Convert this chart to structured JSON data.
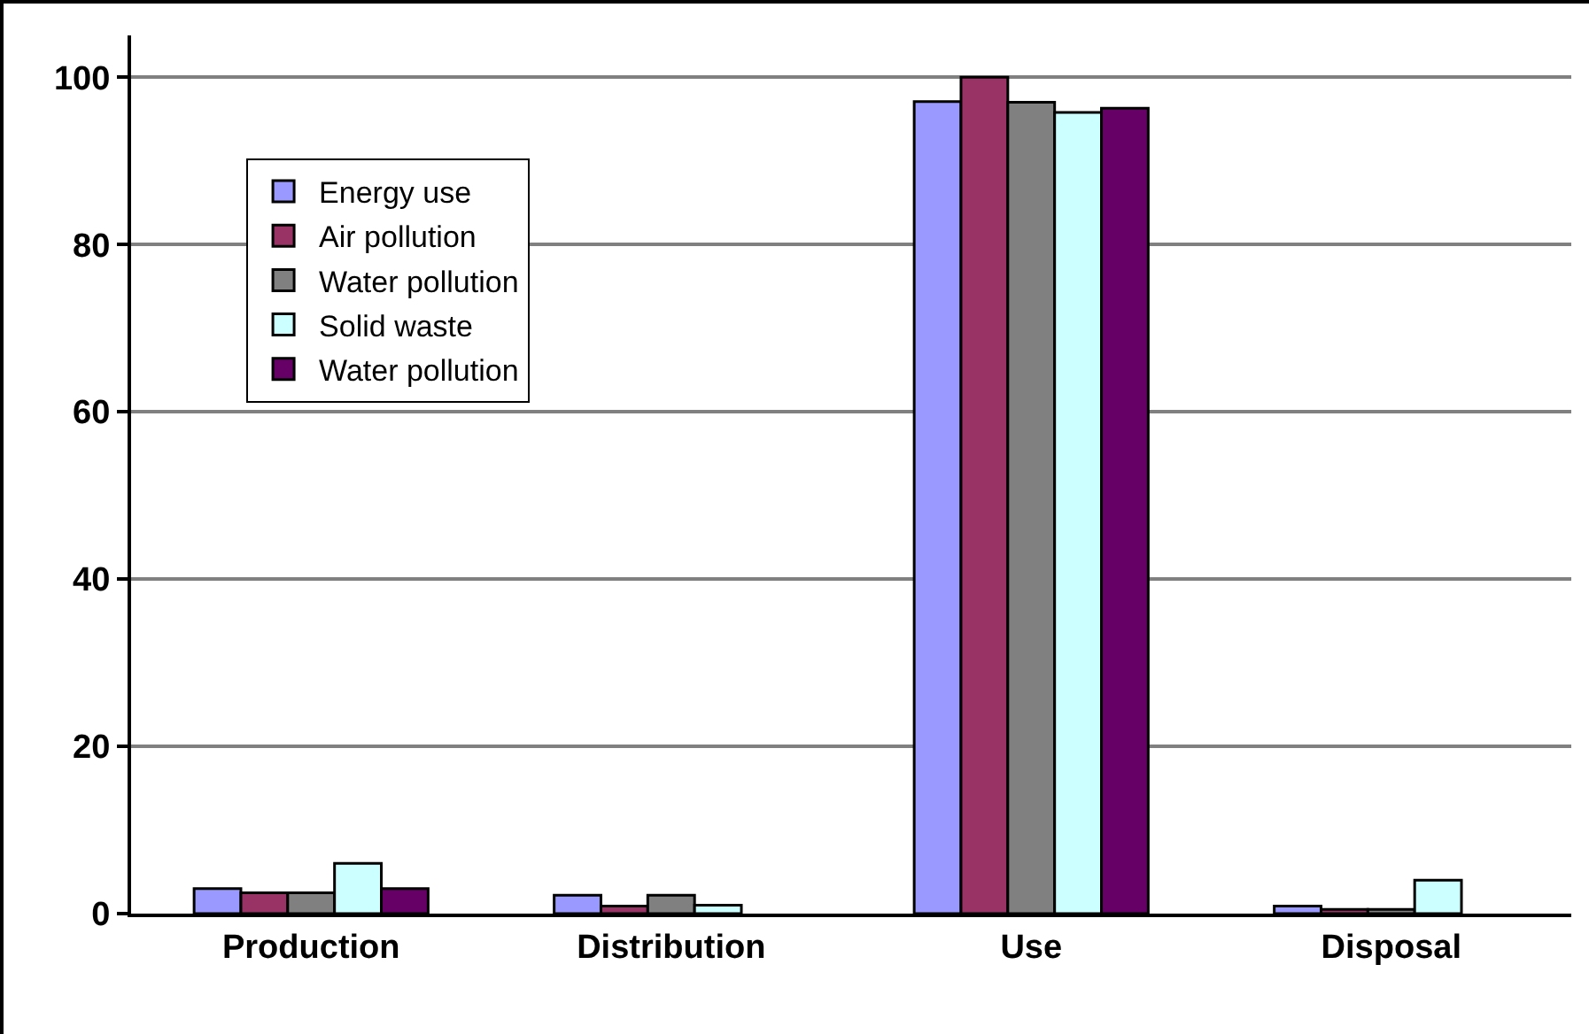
{
  "chart_data": {
    "type": "bar",
    "categories": [
      "Production",
      "Distribution",
      "Use",
      "Disposal"
    ],
    "series": [
      {
        "name": "Energy use",
        "color": "#9999ff",
        "values": [
          3.0,
          2.2,
          97.1,
          0.9
        ]
      },
      {
        "name": "Air pollution",
        "color": "#993366",
        "values": [
          2.5,
          0.9,
          100,
          0.5
        ]
      },
      {
        "name": "Water pollution",
        "color": "#808080",
        "values": [
          2.5,
          2.2,
          97,
          0.5
        ]
      },
      {
        "name": "Solid waste",
        "color": "#ccffff",
        "values": [
          6.0,
          1.0,
          95.8,
          4.0
        ]
      },
      {
        "name": "Water pollution",
        "color": "#660066",
        "values": [
          3.0,
          null,
          96.3,
          null
        ]
      }
    ],
    "ylim": [
      0,
      105
    ],
    "yticks": [
      0,
      20,
      40,
      60,
      80,
      100
    ],
    "grid": "y",
    "legend": "top left"
  }
}
